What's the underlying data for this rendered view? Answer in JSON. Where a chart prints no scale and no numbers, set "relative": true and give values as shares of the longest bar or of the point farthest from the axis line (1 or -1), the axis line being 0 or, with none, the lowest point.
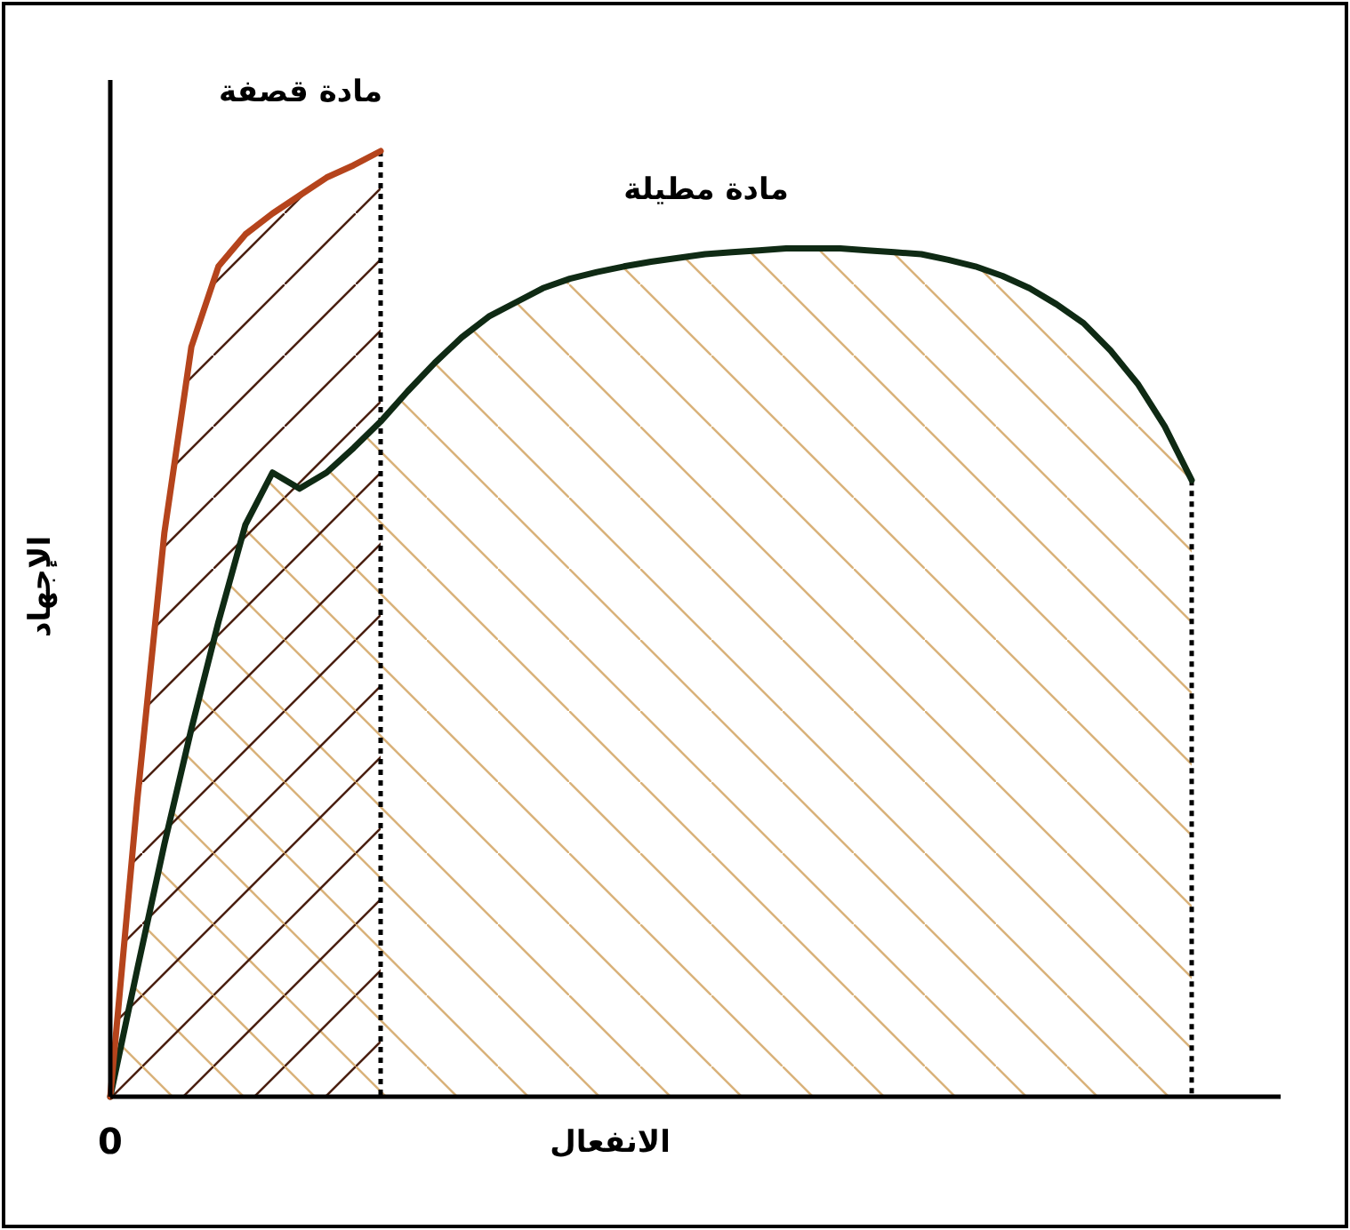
{
  "chart_data": {
    "type": "area",
    "relative": true,
    "xlabel": "الانفعال",
    "ylabel": "الإجهاد",
    "annotations": [
      "0"
    ],
    "categories": [
      null,
      null,
      null,
      null,
      null,
      null,
      null,
      null,
      null,
      null,
      null,
      null,
      null,
      null,
      null,
      null,
      null,
      null,
      null,
      null,
      null,
      null,
      null,
      null,
      null,
      null,
      null,
      null,
      null,
      null,
      null,
      null,
      null,
      null,
      null,
      null,
      null,
      null,
      null,
      null,
      null
    ],
    "series": [
      {
        "name": "مادة مطيلة",
        "color": "#0f2a14",
        "values": [
          0,
          0.135,
          0.267,
          0.389,
          0.502,
          0.605,
          0.66,
          0.643,
          0.66,
          0.686,
          0.714,
          0.746,
          0.776,
          0.803,
          0.825,
          0.84,
          0.855,
          0.865,
          0.872,
          0.878,
          0.883,
          0.887,
          0.891,
          0.893,
          0.895,
          0.897,
          0.897,
          0.897,
          0.895,
          0.893,
          0.891,
          0.885,
          0.878,
          0.868,
          0.855,
          0.838,
          0.818,
          0.789,
          0.754,
          0.709,
          0.652
        ]
      },
      {
        "name": "مادة قصفة",
        "color": "#b5441c",
        "values": [
          0,
          0.314,
          0.596,
          0.793,
          0.878,
          0.912,
          0.934,
          0.953,
          0.972,
          0.985,
          1,
          null,
          null,
          null,
          null,
          null,
          null,
          null,
          null,
          null,
          null,
          null,
          null,
          null,
          null,
          null,
          null,
          null,
          null,
          null,
          null,
          null,
          null,
          null,
          null,
          null,
          null,
          null,
          null,
          null,
          null
        ]
      }
    ]
  }
}
